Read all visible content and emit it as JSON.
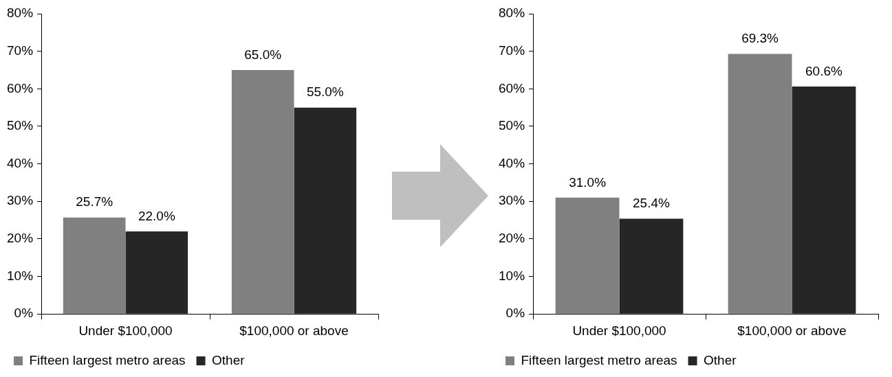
{
  "chart_data": [
    {
      "type": "bar",
      "categories": [
        "Under $100,000",
        "$100,000 or above"
      ],
      "series": [
        {
          "name": "Fifteen largest metro areas",
          "color": "#808080",
          "values": [
            25.7,
            65.0
          ],
          "value_labels": [
            "25.7%",
            "65.0%"
          ]
        },
        {
          "name": "Other",
          "color": "#262626",
          "values": [
            22.0,
            55.0
          ],
          "value_labels": [
            "22.0%",
            "55.0%"
          ]
        }
      ],
      "ylim": [
        0,
        80
      ],
      "yticks": [
        {
          "value": 0,
          "label": "0%"
        },
        {
          "value": 10,
          "label": "10%"
        },
        {
          "value": 20,
          "label": "20%"
        },
        {
          "value": 30,
          "label": "30%"
        },
        {
          "value": 40,
          "label": "40%"
        },
        {
          "value": 50,
          "label": "50%"
        },
        {
          "value": 60,
          "label": "60%"
        },
        {
          "value": 70,
          "label": "70%"
        },
        {
          "value": 80,
          "label": "80%"
        }
      ],
      "grid": false,
      "data_labels": true,
      "legend": "bottom"
    },
    {
      "type": "bar",
      "categories": [
        "Under $100,000",
        "$100,000 or above"
      ],
      "series": [
        {
          "name": "Fifteen largest metro areas",
          "color": "#808080",
          "values": [
            31.0,
            69.3
          ],
          "value_labels": [
            "31.0%",
            "69.3%"
          ]
        },
        {
          "name": "Other",
          "color": "#262626",
          "values": [
            25.4,
            60.6
          ],
          "value_labels": [
            "25.4%",
            "60.6%"
          ]
        }
      ],
      "ylim": [
        0,
        80
      ],
      "yticks": [
        {
          "value": 0,
          "label": "0%"
        },
        {
          "value": 10,
          "label": "10%"
        },
        {
          "value": 20,
          "label": "20%"
        },
        {
          "value": 30,
          "label": "30%"
        },
        {
          "value": 40,
          "label": "40%"
        },
        {
          "value": 50,
          "label": "50%"
        },
        {
          "value": 60,
          "label": "60%"
        },
        {
          "value": 70,
          "label": "70%"
        },
        {
          "value": 80,
          "label": "80%"
        }
      ],
      "grid": false,
      "data_labels": true,
      "legend": "bottom"
    }
  ]
}
